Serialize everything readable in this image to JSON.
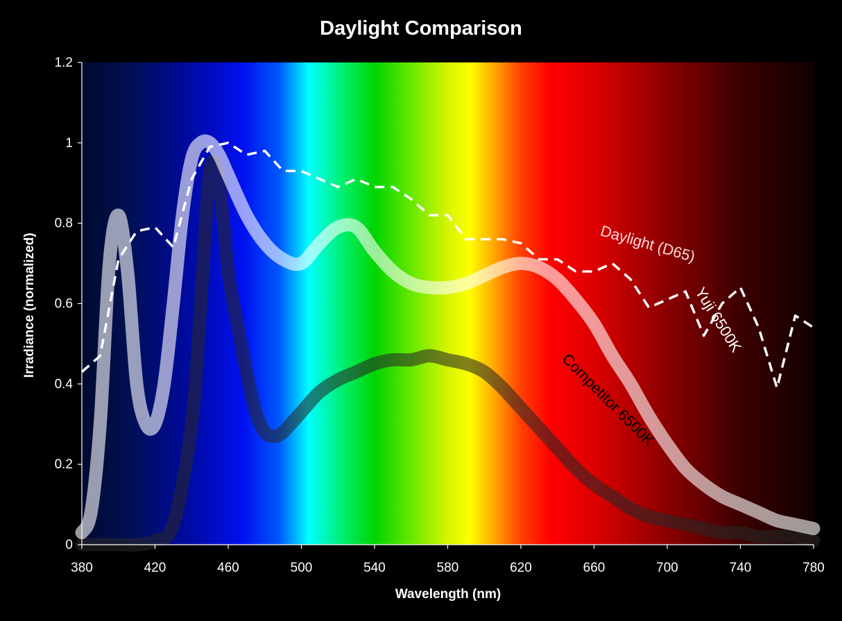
{
  "chart_data": {
    "type": "line",
    "title": "Daylight Comparison",
    "xlabel": "Wavelength (nm)",
    "ylabel": "Irradiance (normalized)",
    "xlim": [
      380,
      780
    ],
    "ylim": [
      0,
      1.2
    ],
    "x_ticks": [
      "380",
      "420",
      "460",
      "500",
      "540",
      "580",
      "620",
      "660",
      "700",
      "740",
      "780"
    ],
    "y_ticks": [
      "0",
      "0.2",
      "0.4",
      "0.6",
      "0.8",
      "1",
      "1.2"
    ],
    "grid": false,
    "background": "visible color spectrum gradient (violet to deep red)",
    "series": [
      {
        "name": "Daylight (D65)",
        "style": "dashed",
        "color": "#ffffff",
        "x": [
          380,
          390,
          400,
          410,
          420,
          430,
          440,
          450,
          460,
          470,
          480,
          490,
          500,
          510,
          520,
          530,
          540,
          550,
          560,
          570,
          580,
          590,
          600,
          610,
          620,
          630,
          640,
          650,
          660,
          670,
          680,
          690,
          700,
          710,
          720,
          730,
          740,
          750,
          760,
          770,
          780
        ],
        "values": [
          0.43,
          0.47,
          0.71,
          0.78,
          0.79,
          0.74,
          0.91,
          0.99,
          1.0,
          0.97,
          0.98,
          0.93,
          0.93,
          0.91,
          0.89,
          0.91,
          0.89,
          0.89,
          0.86,
          0.82,
          0.82,
          0.76,
          0.76,
          0.76,
          0.75,
          0.71,
          0.71,
          0.68,
          0.68,
          0.7,
          0.66,
          0.59,
          0.61,
          0.63,
          0.52,
          0.6,
          0.64,
          0.54,
          0.39,
          0.57,
          0.54
        ]
      },
      {
        "name": "Yuji 6500K",
        "style": "thick-translucent",
        "color": "#ffffff",
        "x": [
          380,
          385,
          390,
          395,
          400,
          405,
          410,
          415,
          420,
          425,
          430,
          435,
          440,
          445,
          450,
          455,
          460,
          470,
          480,
          490,
          500,
          510,
          520,
          530,
          540,
          550,
          560,
          570,
          580,
          590,
          600,
          610,
          620,
          630,
          640,
          650,
          660,
          670,
          680,
          690,
          700,
          710,
          720,
          730,
          740,
          750,
          760,
          770,
          780
        ],
        "values": [
          0.03,
          0.08,
          0.3,
          0.7,
          0.82,
          0.68,
          0.4,
          0.3,
          0.3,
          0.4,
          0.6,
          0.82,
          0.96,
          1.0,
          1.0,
          0.97,
          0.92,
          0.82,
          0.75,
          0.71,
          0.7,
          0.75,
          0.79,
          0.79,
          0.73,
          0.68,
          0.65,
          0.64,
          0.64,
          0.65,
          0.67,
          0.69,
          0.7,
          0.69,
          0.66,
          0.61,
          0.55,
          0.47,
          0.4,
          0.32,
          0.25,
          0.19,
          0.15,
          0.12,
          0.1,
          0.08,
          0.06,
          0.05,
          0.04
        ]
      },
      {
        "name": "Competitor 6500K",
        "style": "thick-translucent",
        "color": "#282828",
        "x": [
          380,
          390,
          400,
          410,
          420,
          430,
          440,
          445,
          450,
          455,
          460,
          465,
          470,
          475,
          480,
          485,
          490,
          500,
          510,
          520,
          530,
          540,
          550,
          560,
          570,
          580,
          590,
          600,
          610,
          620,
          630,
          640,
          650,
          660,
          670,
          680,
          690,
          700,
          710,
          720,
          730,
          740,
          750,
          760,
          770,
          780
        ],
        "values": [
          0.0,
          0.0,
          0.0,
          0.0,
          0.01,
          0.05,
          0.3,
          0.6,
          0.93,
          0.9,
          0.68,
          0.55,
          0.43,
          0.33,
          0.28,
          0.27,
          0.28,
          0.33,
          0.38,
          0.41,
          0.43,
          0.45,
          0.46,
          0.46,
          0.47,
          0.46,
          0.45,
          0.43,
          0.39,
          0.34,
          0.29,
          0.24,
          0.19,
          0.15,
          0.12,
          0.09,
          0.07,
          0.06,
          0.05,
          0.04,
          0.03,
          0.03,
          0.02,
          0.02,
          0.02,
          0.01
        ]
      }
    ],
    "annotations": [
      {
        "text": "Daylight (D65)",
        "color": "#ffd8d8",
        "x": 663,
        "y": 0.77,
        "rotate": 16
      },
      {
        "text": "Yuji 6500K",
        "color": "#ffffff",
        "x": 715,
        "y": 0.63,
        "rotate": 58
      },
      {
        "text": "Competitor 6500K",
        "color": "#000000",
        "x": 642,
        "y": 0.46,
        "rotate": 45
      }
    ]
  }
}
